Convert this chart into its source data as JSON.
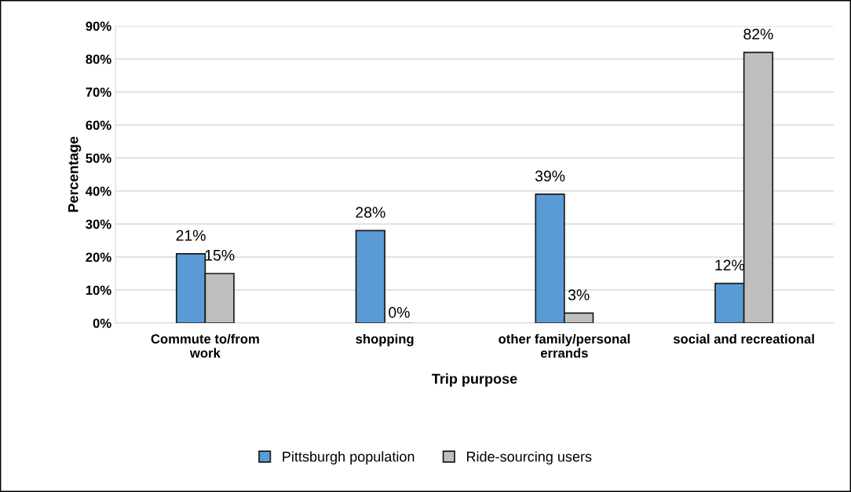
{
  "chart_data": {
    "type": "bar",
    "xlabel": "Trip purpose",
    "ylabel": "Percentage",
    "categories": [
      "Commute to/from\nwork",
      "shopping",
      "other family/personal\nerrands",
      "social and recreational"
    ],
    "series": [
      {
        "name": "Pittsburgh population",
        "color": "#5b9bd5",
        "values": [
          21,
          28,
          39,
          12
        ],
        "value_labels": [
          "21%",
          "28%",
          "39%",
          "12%"
        ]
      },
      {
        "name": "Ride-sourcing users",
        "color": "#bfbfbf",
        "values": [
          15,
          0,
          3,
          82
        ],
        "value_labels": [
          "15%",
          "0%",
          "3%",
          "82%"
        ]
      }
    ],
    "ylim": [
      0,
      90
    ],
    "yticks": [
      {
        "value": 0,
        "label": "0%"
      },
      {
        "value": 10,
        "label": "10%"
      },
      {
        "value": 20,
        "label": "20%"
      },
      {
        "value": 30,
        "label": "30%"
      },
      {
        "value": 40,
        "label": "40%"
      },
      {
        "value": 50,
        "label": "50%"
      },
      {
        "value": 60,
        "label": "60%"
      },
      {
        "value": 70,
        "label": "70%"
      },
      {
        "value": 80,
        "label": "80%"
      },
      {
        "value": 90,
        "label": "90%"
      }
    ],
    "grid": "y",
    "legend": "bottom"
  }
}
